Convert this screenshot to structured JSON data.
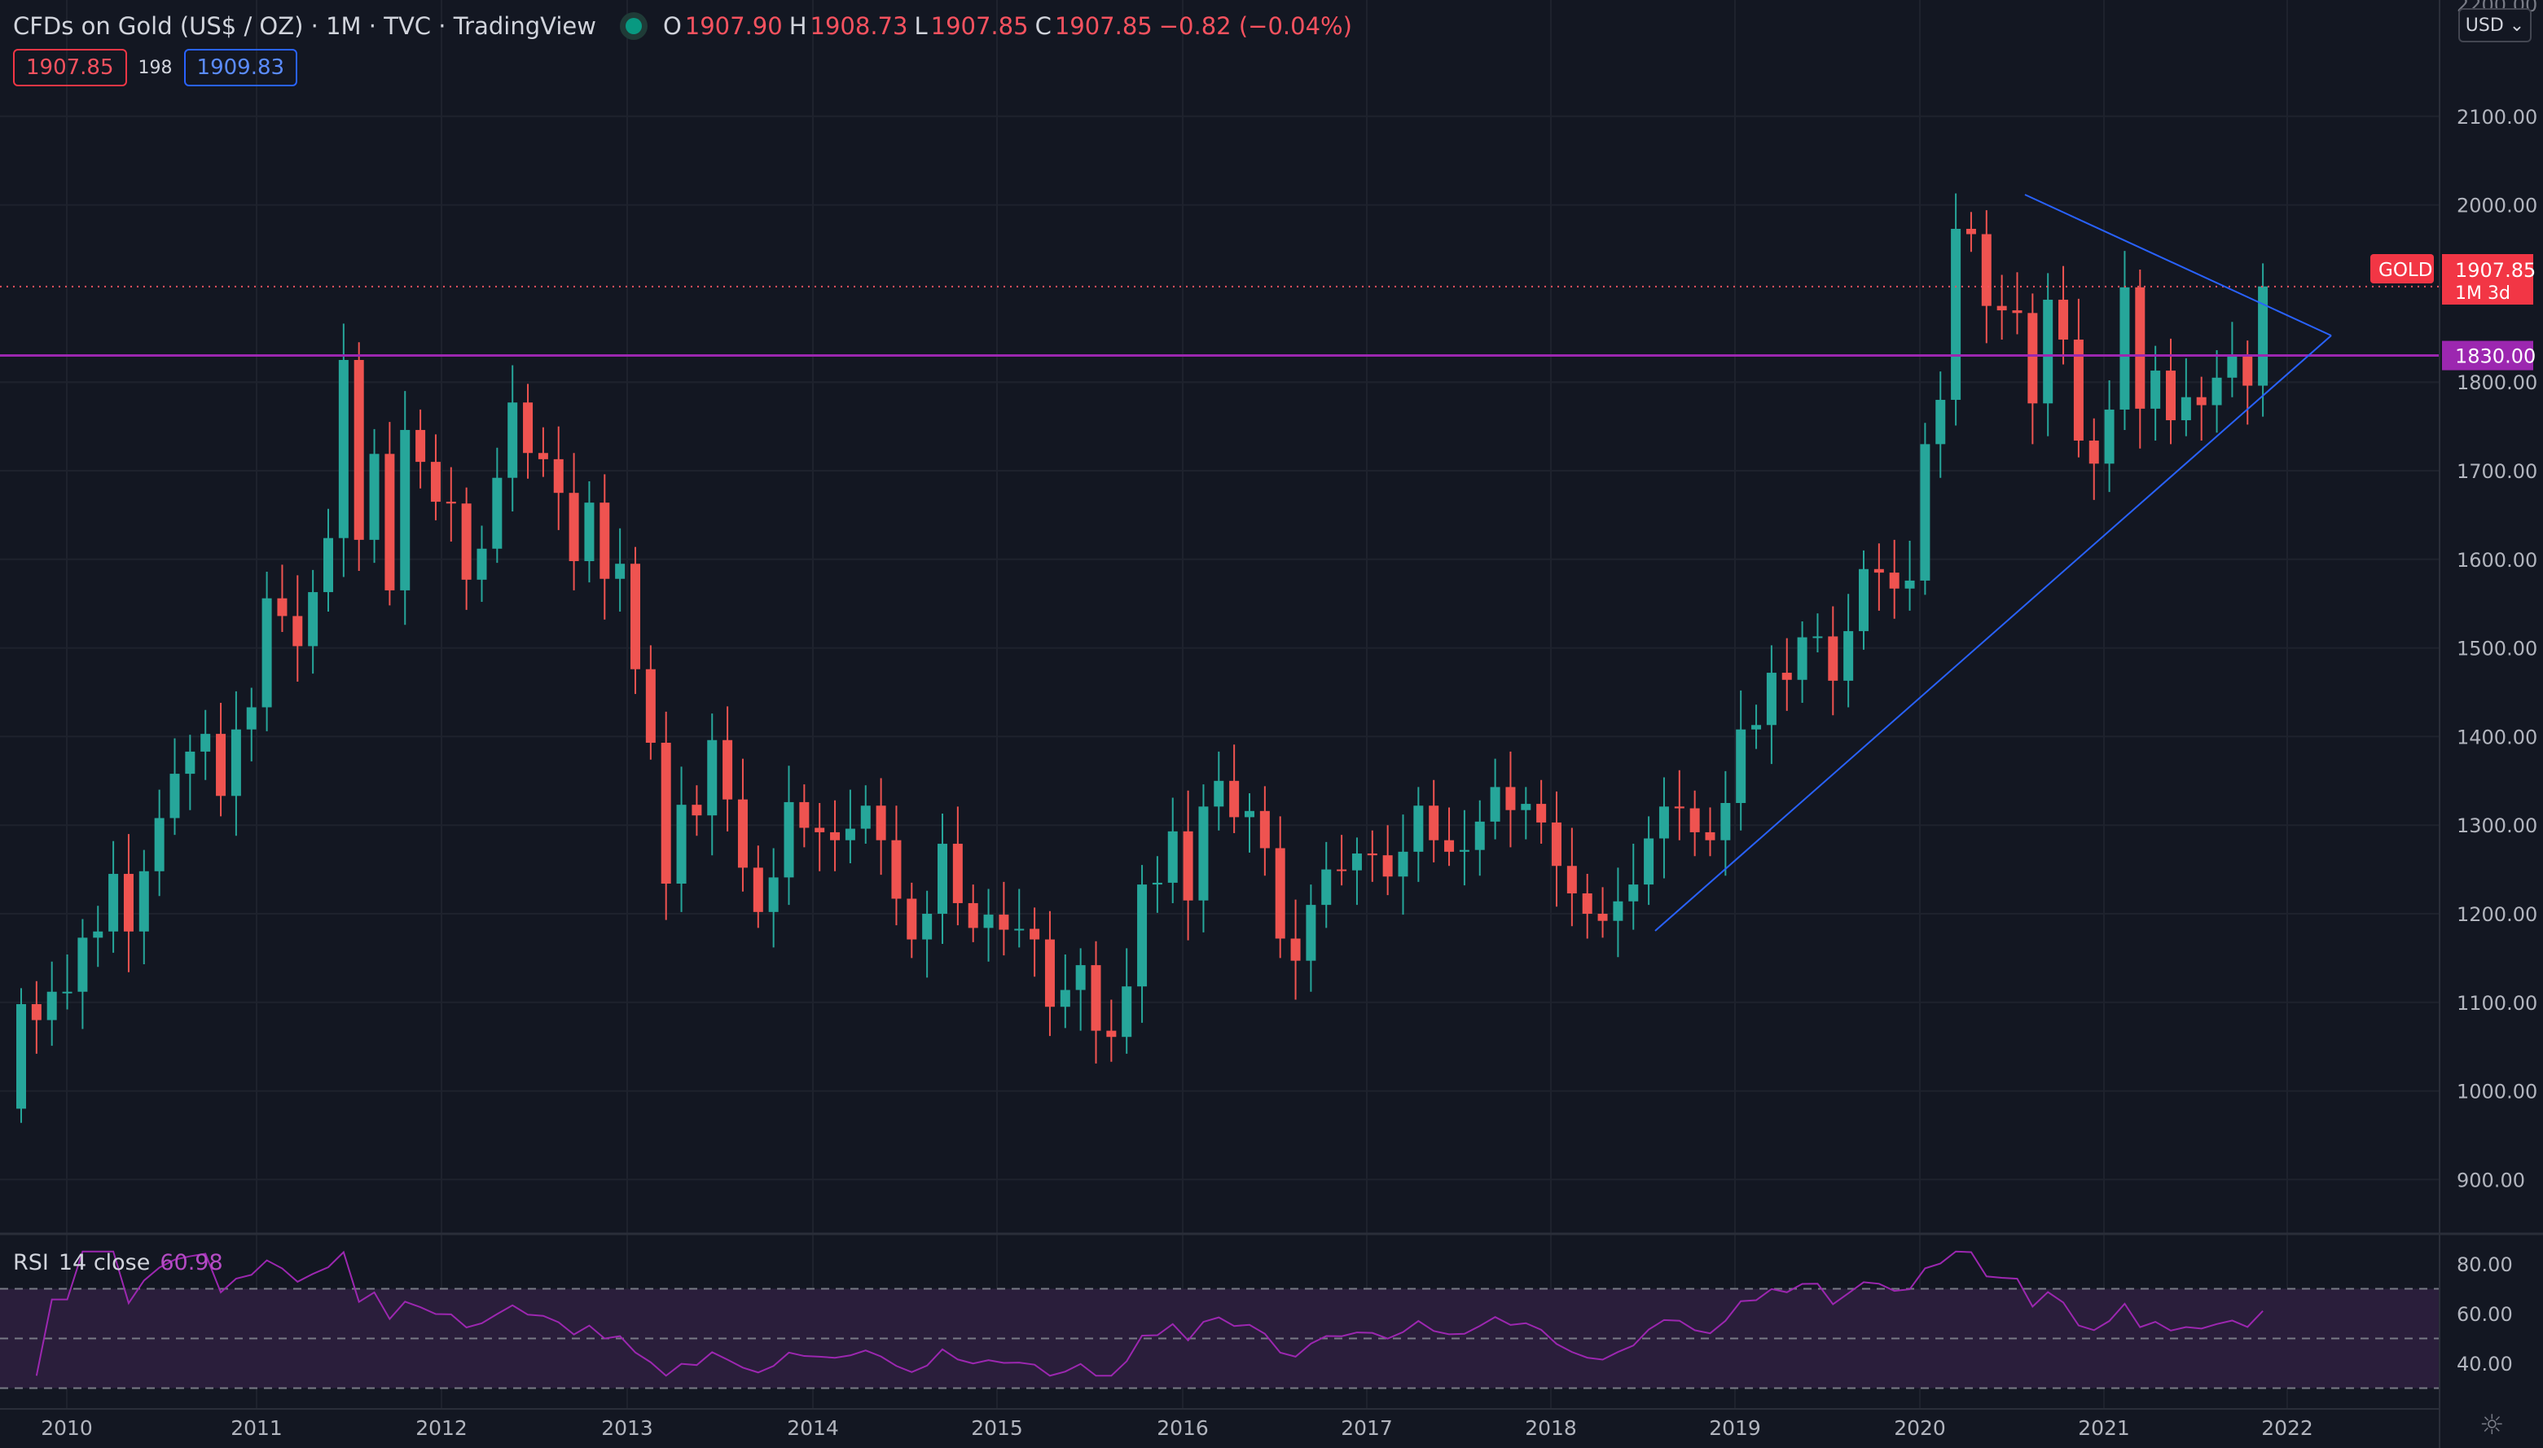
{
  "legend": {
    "symbol": "CFDs on Gold (US$ / OZ)",
    "interval": "1M",
    "exchange": "TVC",
    "source": "TradingView",
    "open": "1907.90",
    "high": "1908.73",
    "low": "1907.85",
    "close": "1907.85",
    "change": "−0.82 (−0.04%)",
    "bid": "1907.85",
    "spread": "198",
    "ask": "1909.83"
  },
  "price_scale": {
    "currency": "USD",
    "labels": [
      "2100.00",
      "2000.00",
      "1800.00",
      "1700.00",
      "1600.00",
      "1500.00",
      "1400.00",
      "1300.00",
      "1200.00",
      "1100.00",
      "1000.00",
      "900.00"
    ],
    "top_partial": "2200.00",
    "last_price": {
      "ticker": "GOLD",
      "value": "1907.85",
      "countdown": "1M 3d"
    },
    "horizontal_line": "1830.00"
  },
  "rsi": {
    "label": "RSI",
    "params": "14 close",
    "value": "60.98",
    "scale": [
      "80.00",
      "60.00",
      "40.00"
    ]
  },
  "time_axis": [
    "2010",
    "2011",
    "2012",
    "2013",
    "2014",
    "2015",
    "2016",
    "2017",
    "2018",
    "2019",
    "2020",
    "2021",
    "2022"
  ],
  "colors": {
    "up": "#26a69a",
    "down": "#ef5350",
    "background": "#131722",
    "trendline": "#2962ff",
    "hline": "#9c27b0",
    "rsi": "#9c27b0"
  },
  "chart_data": {
    "type": "candlestick",
    "interval": "1M",
    "start": "2009-12",
    "closes": [
      1098,
      1080,
      1112,
      1112,
      1173,
      1180,
      1245,
      1180,
      1248,
      1308,
      1358,
      1383,
      1403,
      1333,
      1408,
      1433,
      1556,
      1536,
      1502,
      1563,
      1624,
      1825,
      1622,
      1719,
      1565,
      1746,
      1710,
      1665,
      1663,
      1577,
      1612,
      1692,
      1777,
      1720,
      1713,
      1675,
      1598,
      1664,
      1578,
      1595,
      1476,
      1393,
      1234,
      1323,
      1311,
      1396,
      1329,
      1252,
      1202,
      1241,
      1326,
      1297,
      1292,
      1283,
      1296,
      1322,
      1283,
      1217,
      1171,
      1200,
      1279,
      1212,
      1184,
      1199,
      1182,
      1183,
      1171,
      1095,
      1114,
      1142,
      1068,
      1061,
      1118,
      1233,
      1235,
      1293,
      1215,
      1321,
      1350,
      1309,
      1316,
      1274,
      1172,
      1147,
      1210,
      1250,
      1249,
      1268,
      1266,
      1242,
      1270,
      1322,
      1283,
      1270,
      1272,
      1304,
      1343,
      1317,
      1324,
      1303,
      1254,
      1223,
      1200,
      1192,
      1214,
      1233,
      1285,
      1321,
      1319,
      1292,
      1283,
      1325,
      1408,
      1413,
      1472,
      1464,
      1512,
      1513,
      1463,
      1519,
      1589,
      1585,
      1567,
      1576,
      1730,
      1780,
      1973,
      1967,
      1886,
      1881,
      1878,
      1776,
      1893,
      1848,
      1734,
      1708,
      1769,
      1907,
      1770,
      1813,
      1757,
      1783,
      1774,
      1805,
      1829,
      1796,
      1908
    ]
  }
}
